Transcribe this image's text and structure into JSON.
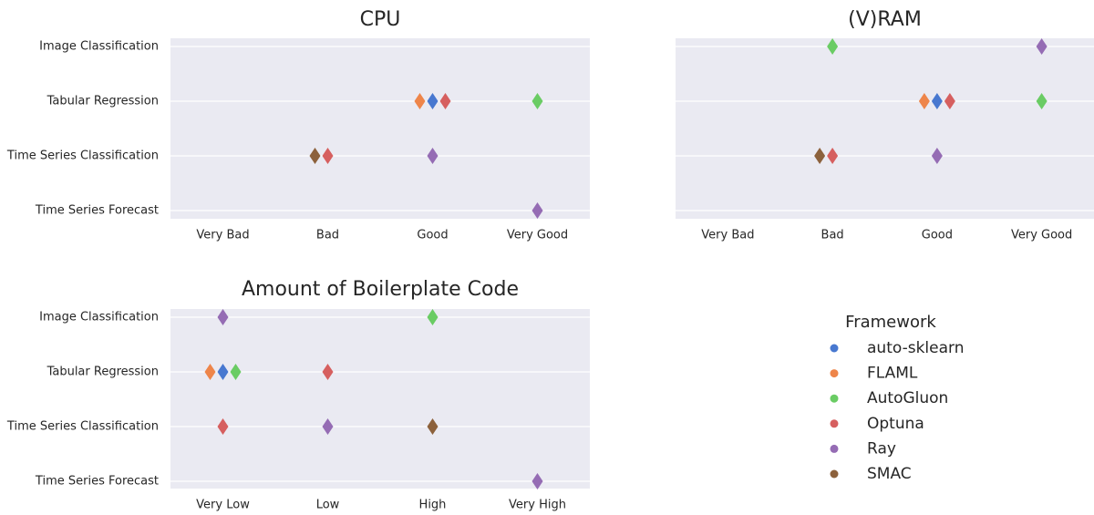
{
  "chart_data": [
    {
      "type": "strip",
      "title": "CPU",
      "categories": [
        "Image Classification",
        "Tabular Regression",
        "Time Series Classification",
        "Time Series Forecast"
      ],
      "x_categories": [
        "Very Bad",
        "Bad",
        "Good",
        "Very Good"
      ],
      "ytick_labels": true,
      "series": [
        {
          "values": [
            null,
            "Good",
            null,
            null
          ]
        },
        {
          "values": [
            null,
            "Good",
            null,
            null
          ]
        },
        {
          "values": [
            null,
            "Very Good",
            null,
            null
          ]
        },
        {
          "values": [
            null,
            "Good",
            "Bad",
            null
          ]
        },
        {
          "values": [
            null,
            null,
            "Good",
            "Very Good"
          ]
        },
        {
          "values": [
            null,
            null,
            "Bad",
            null
          ]
        }
      ]
    },
    {
      "type": "strip",
      "title": "(V)RAM",
      "categories": [
        "Image Classification",
        "Tabular Regression",
        "Time Series Classification",
        "Time Series Forecast"
      ],
      "x_categories": [
        "Very Bad",
        "Bad",
        "Good",
        "Very Good"
      ],
      "ytick_labels": false,
      "series": [
        {
          "values": [
            null,
            "Good",
            null,
            null
          ]
        },
        {
          "values": [
            null,
            "Good",
            null,
            null
          ]
        },
        {
          "values": [
            "Bad",
            "Very Good",
            null,
            null
          ]
        },
        {
          "values": [
            null,
            "Good",
            "Bad",
            null
          ]
        },
        {
          "values": [
            "Very Good",
            null,
            "Good",
            null
          ]
        },
        {
          "values": [
            null,
            null,
            "Bad",
            null
          ]
        }
      ]
    },
    {
      "type": "strip",
      "title": "Amount of Boilerplate Code",
      "categories": [
        "Image Classification",
        "Tabular Regression",
        "Time Series Classification",
        "Time Series Forecast"
      ],
      "x_categories": [
        "Very Low",
        "Low",
        "High",
        "Very High"
      ],
      "ytick_labels": true,
      "series": [
        {
          "values": [
            null,
            "Very Low",
            null,
            null
          ]
        },
        {
          "values": [
            null,
            "Very Low",
            null,
            null
          ]
        },
        {
          "values": [
            "High",
            "Very Low",
            null,
            null
          ]
        },
        {
          "values": [
            null,
            "Low",
            "Very Low",
            null
          ]
        },
        {
          "values": [
            "Very Low",
            null,
            "Low",
            "Very High"
          ]
        },
        {
          "values": [
            null,
            null,
            "High",
            null
          ]
        }
      ]
    }
  ],
  "legend": {
    "title": "Framework",
    "series": [
      {
        "name": "auto-sklearn",
        "color": "#4878d0"
      },
      {
        "name": "FLAML",
        "color": "#ee854a"
      },
      {
        "name": "AutoGluon",
        "color": "#6acc64"
      },
      {
        "name": "Optuna",
        "color": "#d65f5f"
      },
      {
        "name": "Ray",
        "color": "#956cb4"
      },
      {
        "name": "SMAC",
        "color": "#8c613c"
      }
    ]
  }
}
